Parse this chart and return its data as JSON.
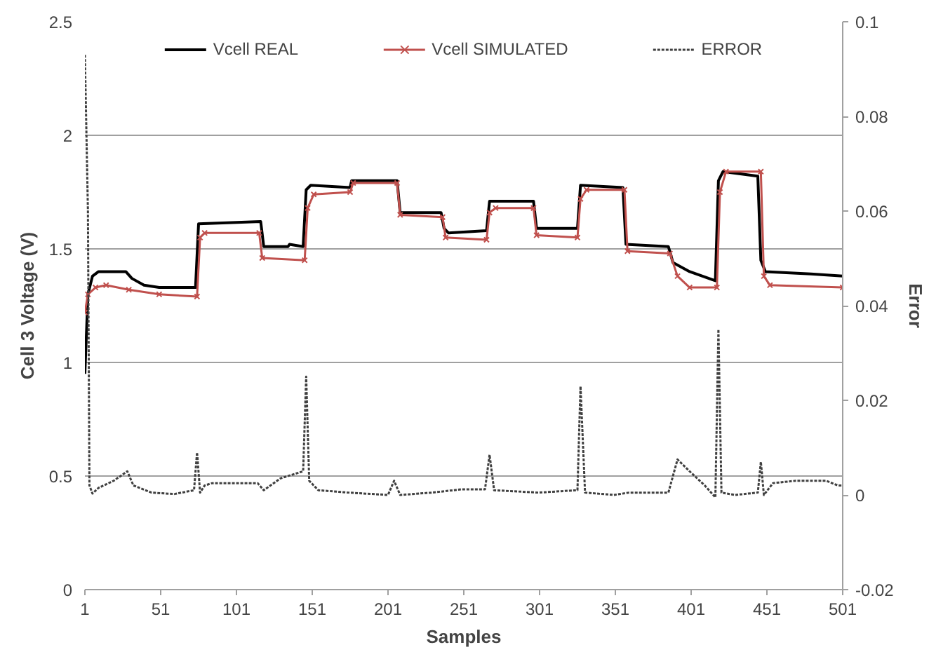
{
  "chart_data": {
    "type": "line",
    "xlabel": "Samples",
    "ylabel": "Cell 3 Voltage (V)",
    "y2label": "Error",
    "xlim": [
      1,
      501
    ],
    "xticks": [
      1,
      51,
      101,
      151,
      201,
      251,
      301,
      351,
      401,
      451,
      501
    ],
    "ylim": [
      0,
      2.5
    ],
    "yticks": [
      0,
      0.5,
      1,
      1.5,
      2,
      2.5
    ],
    "y2lim": [
      -0.02,
      0.1
    ],
    "y2ticks": [
      -0.02,
      0,
      0.02,
      0.04,
      0.06,
      0.08,
      0.1
    ],
    "grid": "y",
    "legend": "top",
    "series": [
      {
        "name": "Vcell REAL",
        "color": "#000000",
        "line_style": "solid",
        "x": [
          1,
          3,
          6,
          10,
          28,
          32,
          40,
          50,
          74,
          76,
          117,
          119,
          135,
          136,
          145,
          147,
          150,
          176,
          177,
          207,
          209,
          236,
          238,
          241,
          266,
          268,
          297,
          299,
          326,
          328,
          356,
          358,
          386,
          389,
          400,
          417,
          419,
          422,
          445,
          447,
          450,
          480,
          501
        ],
        "values": [
          0.95,
          1.3,
          1.38,
          1.4,
          1.4,
          1.37,
          1.34,
          1.33,
          1.33,
          1.61,
          1.62,
          1.51,
          1.51,
          1.52,
          1.51,
          1.76,
          1.78,
          1.77,
          1.8,
          1.8,
          1.66,
          1.66,
          1.59,
          1.57,
          1.58,
          1.71,
          1.71,
          1.59,
          1.59,
          1.78,
          1.77,
          1.52,
          1.51,
          1.44,
          1.4,
          1.36,
          1.8,
          1.84,
          1.82,
          1.45,
          1.4,
          1.39,
          1.38
        ]
      },
      {
        "name": "Vcell SIMULATED",
        "color": "#c0504d",
        "line_style": "solid",
        "marker": "cross",
        "x": [
          1,
          3,
          8,
          15,
          30,
          50,
          75,
          77,
          80,
          116,
          118,
          146,
          148,
          152,
          176,
          178,
          207,
          209,
          237,
          239,
          266,
          268,
          272,
          297,
          299,
          326,
          328,
          332,
          357,
          359,
          387,
          392,
          400,
          418,
          420,
          424,
          447,
          449,
          453,
          501
        ],
        "values": [
          1.22,
          1.3,
          1.33,
          1.34,
          1.32,
          1.3,
          1.29,
          1.55,
          1.57,
          1.57,
          1.46,
          1.45,
          1.68,
          1.74,
          1.75,
          1.79,
          1.79,
          1.65,
          1.64,
          1.55,
          1.54,
          1.66,
          1.68,
          1.68,
          1.56,
          1.55,
          1.72,
          1.76,
          1.76,
          1.49,
          1.48,
          1.38,
          1.33,
          1.33,
          1.75,
          1.84,
          1.84,
          1.38,
          1.34,
          1.33
        ]
      },
      {
        "name": "ERROR",
        "color": "#404040",
        "line_style": "dotted",
        "axis": "y2",
        "x": [
          1,
          3,
          4,
          6,
          10,
          20,
          29,
          33,
          45,
          60,
          73,
          75,
          77,
          80,
          85,
          115,
          119,
          130,
          145,
          147,
          149,
          155,
          175,
          201,
          205,
          209,
          230,
          250,
          265,
          268,
          271,
          300,
          326,
          328,
          331,
          350,
          360,
          386,
          392,
          400,
          410,
          417,
          419,
          421,
          430,
          445,
          447,
          449,
          455,
          470,
          490,
          498,
          501
        ],
        "values": [
          0.093,
          0.06,
          0.002,
          0.0003,
          0.0015,
          0.003,
          0.005,
          0.002,
          0.0005,
          0.0002,
          0.001,
          0.009,
          0.0005,
          0.002,
          0.0025,
          0.0025,
          0.001,
          0.0035,
          0.005,
          0.025,
          0.003,
          0.001,
          0.0005,
          0,
          0.003,
          0,
          0.0005,
          0.0012,
          0.0012,
          0.0085,
          0.001,
          0.0005,
          0.001,
          0.023,
          0.0005,
          0,
          0.0005,
          0.0005,
          0.0075,
          0.005,
          0.002,
          -0.0005,
          0.035,
          0.0005,
          0,
          0.0005,
          0.007,
          0,
          0.0025,
          0.003,
          0.003,
          0.002,
          0.002
        ]
      }
    ]
  }
}
